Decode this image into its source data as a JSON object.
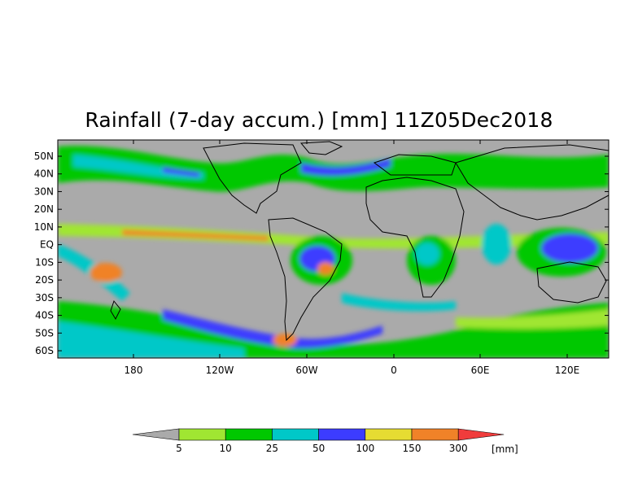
{
  "title": "Rainfall (7-day accum.) [mm] 11Z05Dec2018",
  "latitude_labels": [
    "50N",
    "40N",
    "30N",
    "20N",
    "10N",
    "EQ",
    "10S",
    "20S",
    "30S",
    "40S",
    "50S",
    "60S"
  ],
  "longitude_labels": [
    "180",
    "120W",
    "60W",
    "0",
    "60E",
    "120E"
  ],
  "legend": {
    "unit": "[mm]",
    "thresholds": [
      "5",
      "10",
      "25",
      "50",
      "100",
      "150",
      "300"
    ],
    "colors": [
      "#aaaaaa",
      "#a0e632",
      "#00c800",
      "#00c8c8",
      "#3c3cff",
      "#e6dc32",
      "#f08228",
      "#f03c3c"
    ]
  },
  "colors": {
    "land_no_rain": "#aaaaaa",
    "ocean_no_rain": "#aaaaaa"
  }
}
